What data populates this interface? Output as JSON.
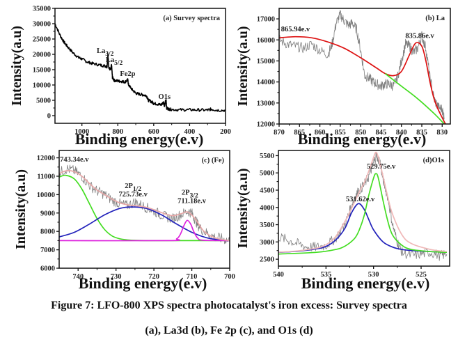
{
  "caption": {
    "line1": "Figure 7: LFO-800 XPS spectra photocatalyst's iron excess: Survey spectra",
    "line2": "(a), La3d (b), Fe 2p (c), and O1s (d)"
  },
  "chart_data": [
    {
      "id": "a",
      "type": "line",
      "title": "(a) Survey spectra",
      "xlabel": "Binding energy(e.v)",
      "ylabel": "Intensity(a.u)",
      "xlim": [
        1150,
        200
      ],
      "ylim": [
        -2500,
        35000
      ],
      "xticks": [
        1000,
        800,
        600,
        400,
        200
      ],
      "yticks": [
        0,
        5000,
        10000,
        15000,
        20000,
        25000,
        30000,
        35000
      ],
      "series": [
        {
          "name": "Survey spectrum",
          "color": "#000000",
          "x": [
            1150,
            1120,
            1100,
            1080,
            1050,
            1020,
            1000,
            970,
            940,
            900,
            870,
            860,
            855,
            850,
            840,
            835,
            830,
            820,
            800,
            780,
            760,
            745,
            740,
            720,
            700,
            680,
            660,
            640,
            630,
            610,
            600,
            580,
            560,
            545,
            540,
            535,
            531,
            528,
            520,
            500,
            450,
            400,
            350,
            300,
            280,
            250,
            200
          ],
          "y": [
            30000,
            26000,
            24000,
            22500,
            20500,
            19000,
            18500,
            17500,
            17000,
            16500,
            16200,
            16000,
            20000,
            15500,
            15000,
            16500,
            12500,
            11500,
            11300,
            11200,
            11000,
            11700,
            10000,
            8500,
            7300,
            7000,
            6800,
            6500,
            5000,
            4500,
            4000,
            3800,
            3500,
            4300,
            3200,
            4500,
            5000,
            2500,
            2200,
            2000,
            1900,
            1900,
            1850,
            1800,
            2100,
            1800,
            1700
          ]
        }
      ],
      "annotations": [
        {
          "text": "La",
          "sub": "3/2",
          "x": 870,
          "y": 20500
        },
        {
          "text": "La",
          "sub": "5/2",
          "x": 820,
          "y": 17500
        },
        {
          "text": "Fe2p",
          "x": 745,
          "y": 13000
        },
        {
          "text": "O1s",
          "x": 540,
          "y": 5500
        }
      ]
    },
    {
      "id": "b",
      "type": "line",
      "title": "(b) La",
      "xlabel": "Binding energy(e.v)",
      "ylabel": "Intensity(a.u)",
      "xlim": [
        870,
        828
      ],
      "ylim": [
        12000,
        17500
      ],
      "xticks": [
        870,
        865,
        860,
        855,
        850,
        845,
        840,
        835,
        830
      ],
      "yticks": [
        12000,
        13000,
        14000,
        15000,
        16000,
        17000
      ],
      "series": [
        {
          "name": "Raw data",
          "color": "#808080",
          "x": [
            870,
            868,
            866,
            864,
            862,
            860,
            858,
            857,
            856,
            855,
            854,
            853,
            852,
            851,
            850,
            849,
            848,
            847,
            846,
            845,
            844,
            843,
            842,
            841,
            840,
            839,
            838,
            837,
            836,
            835,
            834,
            833,
            832,
            831,
            830,
            829.5
          ],
          "y": [
            16000,
            15800,
            15700,
            15600,
            15800,
            15500,
            15300,
            15800,
            16800,
            17200,
            16900,
            16700,
            16800,
            16500,
            15500,
            14300,
            14200,
            14000,
            13900,
            13800,
            13900,
            13900,
            13800,
            14200,
            15000,
            15800,
            15700,
            15400,
            15600,
            16200,
            15600,
            14200,
            13200,
            12800,
            12700,
            12300
          ]
        },
        {
          "name": "Fit envelope",
          "color": "#dd1111",
          "x": [
            870,
            866,
            862,
            858,
            854,
            850,
            846,
            844,
            842,
            840,
            838,
            836.5,
            835,
            834,
            833,
            832,
            831,
            830,
            829.2
          ],
          "y": [
            16100,
            16150,
            16100,
            15900,
            15600,
            15150,
            14650,
            14400,
            14300,
            14500,
            15300,
            15850,
            15700,
            15000,
            14000,
            13200,
            12700,
            12300,
            12000
          ]
        },
        {
          "name": "Background",
          "color": "#44dd22",
          "x": [
            844,
            840,
            836,
            832,
            829.5
          ],
          "y": [
            14400,
            13800,
            13200,
            12500,
            12000
          ]
        }
      ],
      "annotations": [
        {
          "text": "865.94e.v",
          "x": 866,
          "y": 16400
        },
        {
          "text": "835.86e.v",
          "x": 835.5,
          "y": 16100
        }
      ]
    },
    {
      "id": "c",
      "type": "line",
      "title": "(c) (Fe)",
      "xlabel": "Binding energy(e.v)",
      "ylabel": "Intensity(a.u)",
      "xlim": [
        745,
        700
      ],
      "ylim": [
        6000,
        12400
      ],
      "xticks": [
        740,
        730,
        720,
        710,
        700
      ],
      "yticks": [
        6000,
        7000,
        8000,
        9000,
        10000,
        11000,
        12000
      ],
      "series": [
        {
          "name": "Raw data",
          "color": "#808080",
          "x": [
            745,
            743,
            741,
            739,
            737,
            735,
            733,
            731,
            729,
            727,
            725,
            723,
            721,
            719,
            717,
            715,
            713,
            711,
            710,
            709,
            708,
            706,
            704,
            702,
            700
          ],
          "y": [
            11200,
            11400,
            11300,
            11000,
            10500,
            10200,
            10000,
            9700,
            9500,
            9400,
            9600,
            9400,
            9200,
            9000,
            8800,
            8700,
            8900,
            9100,
            9000,
            8600,
            8200,
            7900,
            7700,
            7600,
            7500
          ]
        },
        {
          "name": "Peak 743.34",
          "color": "#44dd22",
          "x": [
            745,
            743.3,
            741,
            739,
            737,
            735,
            733,
            731,
            729,
            726,
            722,
            715,
            700
          ],
          "y": [
            10950,
            11050,
            10850,
            10300,
            9500,
            8700,
            8100,
            7750,
            7600,
            7520,
            7500,
            7500,
            7500
          ]
        },
        {
          "name": "Peak 725.73 (2P1/2)",
          "color": "#2222bb",
          "x": [
            745,
            741,
            737,
            733,
            729,
            725.7,
            722,
            718,
            714,
            710,
            706,
            702,
            700
          ],
          "y": [
            7700,
            7950,
            8400,
            8900,
            9250,
            9330,
            9250,
            8900,
            8400,
            7950,
            7650,
            7520,
            7500
          ]
        },
        {
          "name": "Peak 711.18 (2P3/2)",
          "color": "#dd22dd",
          "x": [
            745,
            716,
            714,
            713,
            712,
            711.2,
            710.3,
            709.5,
            708.5,
            707,
            700
          ],
          "y": [
            7500,
            7500,
            7600,
            7850,
            8350,
            8600,
            8400,
            8000,
            7650,
            7520,
            7500
          ]
        },
        {
          "name": "Fit envelope",
          "color": "#e8a8a8",
          "x": [
            745,
            743,
            741,
            739,
            737,
            735,
            733,
            731,
            729,
            727,
            725,
            723,
            721,
            719,
            717,
            715,
            713,
            711,
            709,
            707,
            705,
            703,
            700
          ],
          "y": [
            11150,
            11300,
            11250,
            11000,
            10600,
            10250,
            10000,
            9750,
            9550,
            9450,
            9400,
            9350,
            9250,
            9100,
            8950,
            8850,
            8950,
            9050,
            8650,
            8050,
            7750,
            7600,
            7500
          ]
        }
      ],
      "annotations": [
        {
          "text": "743.34e.v",
          "x": 741,
          "y": 11800
        },
        {
          "text": "2P",
          "sub": "1/2",
          "x": 725.5,
          "y": 10350
        },
        {
          "text": "725.73e.v",
          "x": 725.5,
          "y": 9900
        },
        {
          "text": "2P",
          "sub": "3/2",
          "x": 710.5,
          "y": 10000
        },
        {
          "text": "711.18e.v",
          "x": 710,
          "y": 9550
        }
      ]
    },
    {
      "id": "d",
      "type": "line",
      "title": "(d)O1s",
      "xlabel": "Binding energy(e.v)",
      "ylabel": "Intensity(a.u)",
      "xlim": [
        540,
        522
      ],
      "ylim": [
        2300,
        5650
      ],
      "xticks": [
        540,
        535,
        530,
        525
      ],
      "yticks": [
        2500,
        3000,
        3500,
        4000,
        4500,
        5000,
        5500
      ],
      "series": [
        {
          "name": "Raw data",
          "color": "#808080",
          "x": [
            540,
            539,
            538,
            537,
            536,
            535,
            534,
            533,
            532.5,
            532,
            531.5,
            531,
            530.5,
            530,
            529.7,
            529.3,
            529,
            528.5,
            528,
            527.5,
            527,
            526,
            525,
            524,
            523,
            522.3
          ],
          "y": [
            3150,
            3050,
            2950,
            2850,
            2850,
            2900,
            3100,
            3500,
            3900,
            4300,
            4500,
            4650,
            4900,
            5300,
            5500,
            5300,
            4800,
            4300,
            3500,
            3000,
            2700,
            2600,
            2650,
            2700,
            2600,
            2650
          ]
        },
        {
          "name": "Peak 531.62",
          "color": "#2222bb",
          "x": [
            540,
            538,
            536,
            535,
            534,
            533,
            532.3,
            531.6,
            531,
            530.5,
            530,
            529,
            528,
            527,
            526,
            524,
            522.3
          ],
          "y": [
            2700,
            2730,
            2800,
            2870,
            3050,
            3400,
            3850,
            4110,
            3950,
            3650,
            3350,
            3000,
            2850,
            2780,
            2750,
            2720,
            2700
          ]
        },
        {
          "name": "Peak 529.75",
          "color": "#44dd22",
          "x": [
            540,
            536,
            534,
            533,
            532,
            531.5,
            531,
            530.5,
            530,
            529.75,
            529.5,
            529,
            528.5,
            528,
            527,
            526,
            524,
            522.3
          ],
          "y": [
            2650,
            2700,
            2780,
            2880,
            3100,
            3350,
            3750,
            4350,
            4850,
            4980,
            4850,
            4200,
            3600,
            3200,
            2900,
            2780,
            2720,
            2700
          ]
        },
        {
          "name": "Fit envelope",
          "color": "#f0b8b8",
          "x": [
            540,
            538,
            536,
            535,
            534,
            533,
            532,
            531.5,
            531,
            530.5,
            530,
            529.75,
            529.5,
            529,
            528.5,
            528,
            527,
            526,
            524,
            522.3
          ],
          "y": [
            2700,
            2740,
            2820,
            2920,
            3150,
            3600,
            4150,
            4450,
            4700,
            5050,
            5450,
            5600,
            5450,
            4900,
            4300,
            3800,
            3200,
            2950,
            2780,
            2720
          ]
        }
      ],
      "annotations": [
        {
          "text": "529.75e.v",
          "x": 529.2,
          "y": 5130
        },
        {
          "text": "531.62e.v",
          "x": 531.4,
          "y": 4180
        }
      ]
    }
  ]
}
